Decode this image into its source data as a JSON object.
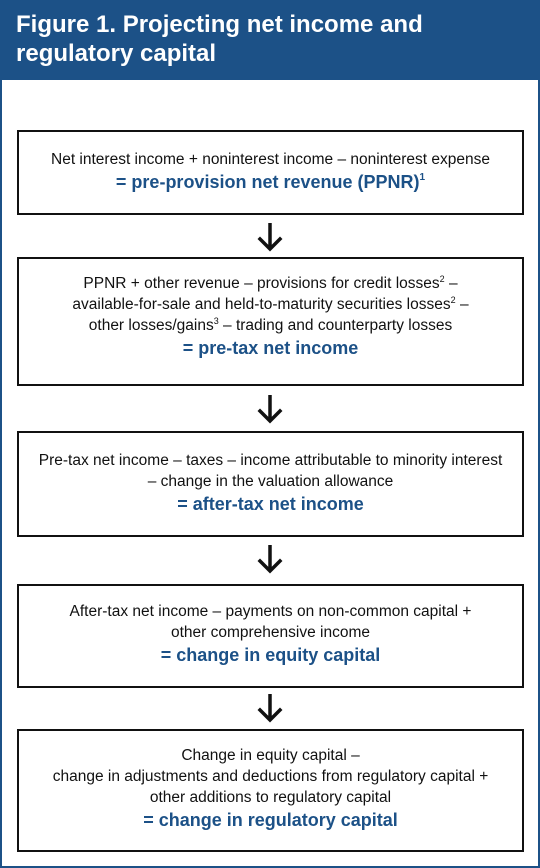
{
  "figure": {
    "title": "Figure 1. Projecting net income and regulatory capital"
  },
  "steps": [
    {
      "lines": [
        "Net interest income + noninterest income – noninterest expense"
      ],
      "result": "= pre-provision net revenue (PPNR)",
      "result_note": "1"
    },
    {
      "line1_a": "PPNR + other revenue – provisions for credit losses",
      "line1_note": "2",
      "line1_b": " –",
      "line2_a": "available-for-sale and held-to-maturity securities losses",
      "line2_note": "2",
      "line2_b": " –",
      "line3_a": "other losses/gains",
      "line3_note": "3",
      "line3_b": " – trading and counterparty losses",
      "result": "= pre-tax net income"
    },
    {
      "lines": [
        "Pre-tax net income – taxes – income attributable to minority interest",
        "– change in the valuation allowance"
      ],
      "result": "= after-tax net income"
    },
    {
      "lines": [
        "After-tax net income – payments on non-common capital +",
        "other comprehensive income"
      ],
      "result": "= change in equity capital"
    },
    {
      "lines": [
        "Change in equity capital –",
        "change in adjustments and deductions from regulatory capital +",
        "other additions to regulatory capital"
      ],
      "result": "= change in regulatory capital"
    }
  ]
}
